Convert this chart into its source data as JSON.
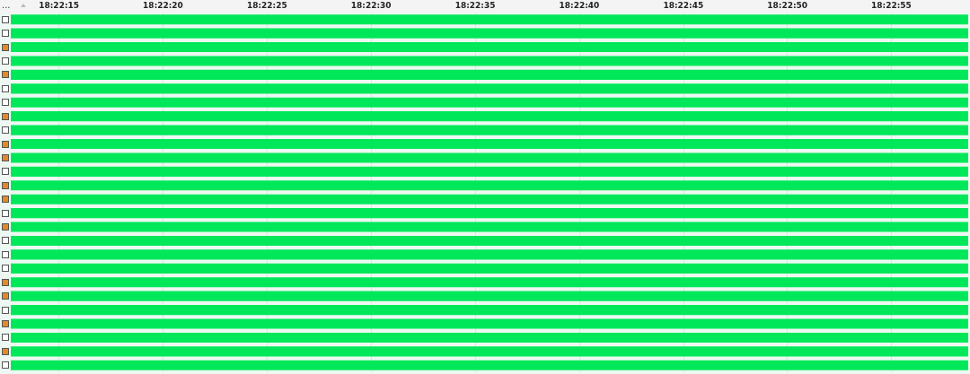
{
  "chart_data": {
    "type": "bar",
    "orientation": "horizontal",
    "annotations": [
      "..."
    ],
    "categories": [
      null,
      null,
      null,
      null,
      null,
      null,
      null,
      null,
      null,
      null,
      null,
      null,
      null,
      null,
      null,
      null,
      null,
      null,
      null,
      null,
      null,
      null,
      null,
      null,
      null,
      null
    ],
    "base": [
      18.37019,
      18.37019,
      18.37019,
      18.37019,
      18.37019,
      18.37019,
      18.37019,
      18.37019,
      18.37019,
      18.37019,
      18.37019,
      18.37019,
      18.37019,
      18.37019,
      18.37019,
      18.37019,
      18.37019,
      18.37019,
      18.37019,
      18.37019,
      18.37019,
      18.37019,
      18.37019,
      18.37019,
      18.37019,
      18.37019
    ],
    "values": [
      0.01278,
      0.01278,
      0.01278,
      0.01278,
      0.01278,
      0.01278,
      0.01278,
      0.01278,
      0.01278,
      0.01278,
      0.01278,
      0.01278,
      0.01278,
      0.01278,
      0.01278,
      0.01278,
      0.01278,
      0.01278,
      0.01278,
      0.01278,
      0.01278,
      0.01278,
      0.01278,
      0.01278,
      0.01278,
      0.01278
    ],
    "color": "#00e85a",
    "xlim": [
      18.37019,
      18.38297
    ],
    "xticks": [
      {
        "value": 18.370833,
        "label": "18:22:15"
      },
      {
        "value": 18.372222,
        "label": "18:22:20"
      },
      {
        "value": 18.373611,
        "label": "18:22:25"
      },
      {
        "value": 18.375,
        "label": "18:22:30"
      },
      {
        "value": 18.376389,
        "label": "18:22:35"
      },
      {
        "value": 18.377778,
        "label": "18:22:40"
      },
      {
        "value": 18.379167,
        "label": "18:22:45"
      },
      {
        "value": 18.380556,
        "label": "18:22:50"
      },
      {
        "value": 18.381944,
        "label": "18:22:55"
      }
    ],
    "grid": "x",
    "tick_labels": "x"
  }
}
